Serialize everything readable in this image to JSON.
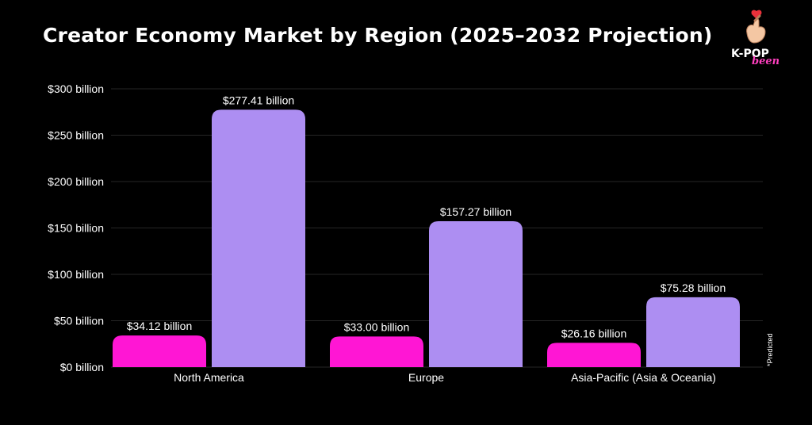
{
  "title": "Creator Economy Market by Region (2025–2032 Projection)",
  "logo": {
    "line1": "K-POP",
    "line2": "been",
    "icon": "finger-heart-hand-icon"
  },
  "footnote": "*Predicted",
  "colors": {
    "series_2025": "#ff16d4",
    "series_2032": "#ad8ef2",
    "background": "#000000"
  },
  "chart_data": {
    "type": "bar",
    "title": "Creator Economy Market by Region (2025–2032 Projection)",
    "categories": [
      "North America",
      "Europe",
      "Asia-Pacific (Asia & Oceania)"
    ],
    "series": [
      {
        "values": [
          34.12,
          33.0,
          26.16
        ],
        "labels": [
          "$34.12 billion",
          "$33.00 billion",
          "$26.16 billion"
        ]
      },
      {
        "values": [
          277.41,
          157.27,
          75.28
        ],
        "labels": [
          "$277.41 billion",
          "$157.27 billion",
          "$75.28 billion"
        ]
      }
    ],
    "ylim": [
      0,
      300
    ],
    "yticks": [
      0,
      50,
      100,
      150,
      200,
      250,
      300
    ],
    "ytick_labels": [
      "$0 billion",
      "$50 billion",
      "$100 billion",
      "$150 billion",
      "$200 billion",
      "$250 billion",
      "$300 billion"
    ],
    "grid": true,
    "xlabel": "",
    "ylabel": ""
  }
}
